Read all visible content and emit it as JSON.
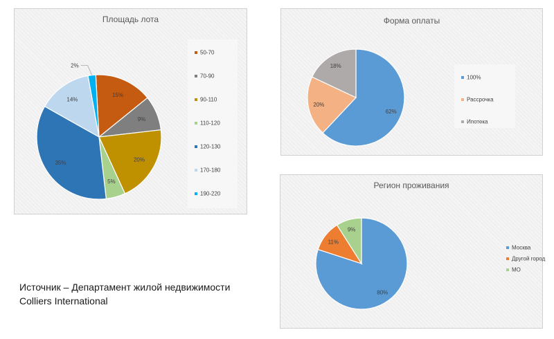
{
  "source": {
    "line1": "Источник – Департамент жилой недвижимости",
    "line2": "Colliers International"
  },
  "colors": {
    "orange": "#c55a11",
    "gray": "#7f7f7f",
    "gold": "#bf9000",
    "lightgreen": "#a9d18e",
    "darkblue": "#2e75b6",
    "lightblue": "#bdd7ee",
    "cyan": "#00b0f0",
    "blue": "#5b9bd5",
    "peach": "#f4b183",
    "taupe": "#aeaaaa",
    "salmon": "#ed7d31",
    "green": "#a9d18e"
  },
  "chart_data": [
    {
      "type": "pie",
      "title": "Площадь лота",
      "slices": [
        {
          "label": "50-70",
          "value": 15,
          "display": "15%",
          "color": "#c55a11"
        },
        {
          "label": "70-90",
          "value": 9,
          "display": "9%",
          "color": "#7f7f7f"
        },
        {
          "label": "90-110",
          "value": 20,
          "display": "20%",
          "color": "#bf9000"
        },
        {
          "label": "110-120",
          "value": 5,
          "display": "5%",
          "color": "#a9d18e"
        },
        {
          "label": "120-130",
          "value": 35,
          "display": "35%",
          "color": "#2e75b6"
        },
        {
          "label": "170-180",
          "value": 14,
          "display": "14%",
          "color": "#bdd7ee"
        },
        {
          "label": "190-220",
          "value": 2,
          "display": "2%",
          "color": "#00b0f0"
        }
      ],
      "legend_position": "right"
    },
    {
      "type": "pie",
      "title": "Форма оплаты",
      "slices": [
        {
          "label": "100%",
          "value": 62,
          "display": "62%",
          "color": "#5b9bd5"
        },
        {
          "label": "Рассрочка",
          "value": 20,
          "display": "20%",
          "color": "#f4b183"
        },
        {
          "label": "Ипотека",
          "value": 18,
          "display": "18%",
          "color": "#aeaaaa"
        }
      ],
      "legend_position": "right"
    },
    {
      "type": "pie",
      "title": "Регион проживания",
      "slices": [
        {
          "label": "Москва",
          "value": 80,
          "display": "80%",
          "color": "#5b9bd5"
        },
        {
          "label": "Другой город",
          "value": 11,
          "display": "11%",
          "color": "#ed7d31"
        },
        {
          "label": "МО",
          "value": 9,
          "display": "9%",
          "color": "#a9d18e"
        }
      ],
      "legend_position": "right"
    }
  ]
}
